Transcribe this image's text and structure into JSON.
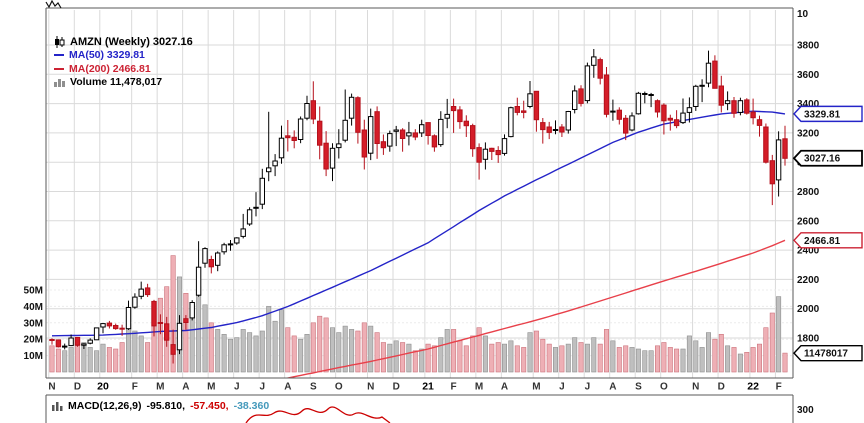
{
  "chart_data": {
    "type": "candlestick",
    "symbol": "AMZN",
    "timeframe": "Weekly",
    "title": "AMZN (Weekly) 3027.16",
    "last_price": 3027.16,
    "legend": {
      "ma50_label": "MA(50) 3329.81",
      "ma200_label": "MA(200) 2466.81",
      "volume_label": "Volume 11,478,017"
    },
    "upper_axis_label": "10",
    "price_ticks": [
      3800,
      3600,
      3400,
      3200,
      3000,
      2800,
      2600,
      2400,
      2200,
      2000,
      1800
    ],
    "volume_ticks": [
      50,
      40,
      30,
      20,
      10
    ],
    "x_ticks": [
      {
        "i": 0,
        "l": "N"
      },
      {
        "i": 4,
        "l": "D"
      },
      {
        "i": 8,
        "l": "20",
        "y": 1
      },
      {
        "i": 13,
        "l": "F"
      },
      {
        "i": 17,
        "l": "M"
      },
      {
        "i": 21,
        "l": "A"
      },
      {
        "i": 25,
        "l": "M"
      },
      {
        "i": 29,
        "l": "J"
      },
      {
        "i": 33,
        "l": "J"
      },
      {
        "i": 37,
        "l": "A"
      },
      {
        "i": 41,
        "l": "S"
      },
      {
        "i": 45,
        "l": "O"
      },
      {
        "i": 50,
        "l": "N"
      },
      {
        "i": 54,
        "l": "D"
      },
      {
        "i": 59,
        "l": "21",
        "y": 1
      },
      {
        "i": 63,
        "l": "F"
      },
      {
        "i": 67,
        "l": "M"
      },
      {
        "i": 71,
        "l": "A"
      },
      {
        "i": 76,
        "l": "M"
      },
      {
        "i": 80,
        "l": "J"
      },
      {
        "i": 84,
        "l": "J"
      },
      {
        "i": 88,
        "l": "A"
      },
      {
        "i": 92,
        "l": "S"
      },
      {
        "i": 96,
        "l": "O"
      },
      {
        "i": 101,
        "l": "N"
      },
      {
        "i": 105,
        "l": "D"
      },
      {
        "i": 110,
        "l": "22",
        "y": 1
      },
      {
        "i": 114,
        "l": "F"
      }
    ],
    "callouts": {
      "ma50": "3329.81",
      "ma50_value": 3329.81,
      "last": "3027.16",
      "last_value": 3027.16,
      "ma200": "2466.81",
      "ma200_value": 2466.81,
      "volume": "11478017",
      "volume_value": 11.5
    },
    "macd": {
      "label": "MACD(12,26,9)",
      "values": [
        -95.81,
        -57.45,
        -38.36
      ],
      "display": [
        "-95.810,",
        "-57.450,",
        "-38.360"
      ],
      "axis_label": "300"
    },
    "colors": {
      "up_fill": "#ffffff",
      "up_stroke": "#000000",
      "down_fill": "#d41d28",
      "down_stroke": "#b5101b",
      "ma50": "#2424c8",
      "ma200": "#e8404a",
      "ma200_text": "#cc2233",
      "vol_up": "#bfbfbf",
      "vol_up_stroke": "#8f8f8f",
      "vol_down": "#eeafb5",
      "vol_down_stroke": "#cc737c",
      "grid": "#dadada",
      "border": "#5a5a5a",
      "macd_line": "#000000",
      "macd_signal": "#cc0000",
      "macd_hist": "#4499bb"
    },
    "candles": [
      [
        1790,
        1797,
        1755,
        1785
      ],
      [
        1787,
        1789,
        1735,
        1740
      ],
      [
        1738,
        1762,
        1722,
        1745
      ],
      [
        1748,
        1824,
        1745,
        1800
      ],
      [
        1804,
        1806,
        1740,
        1751
      ],
      [
        1751,
        1764,
        1725,
        1760
      ],
      [
        1765,
        1798,
        1757,
        1786
      ],
      [
        1788,
        1870,
        1787,
        1869
      ],
      [
        1875,
        1902,
        1832,
        1898
      ],
      [
        1902,
        1917,
        1865,
        1883
      ],
      [
        1885,
        1898,
        1856,
        1864
      ],
      [
        1867,
        1891,
        1815,
        1861
      ],
      [
        1863,
        2055,
        1855,
        2008
      ],
      [
        2010,
        2105,
        2000,
        2079
      ],
      [
        2085,
        2185,
        2065,
        2134
      ],
      [
        2142,
        2170,
        2080,
        2096
      ],
      [
        2050,
        2060,
        1811,
        1883
      ],
      [
        1906,
        1962,
        1826,
        1901
      ],
      [
        1897,
        1944,
        1740,
        1785
      ],
      [
        1755,
        1857,
        1626,
        1689
      ],
      [
        1719,
        1956,
        1690,
        1900
      ],
      [
        1932,
        1956,
        1856,
        1906
      ],
      [
        1937,
        2058,
        1920,
        2042
      ],
      [
        2092,
        2461,
        2082,
        2283
      ],
      [
        2310,
        2420,
        2280,
        2410
      ],
      [
        2336,
        2362,
        2241,
        2286
      ],
      [
        2296,
        2391,
        2256,
        2380
      ],
      [
        2388,
        2450,
        2370,
        2436
      ],
      [
        2440,
        2469,
        2396,
        2442
      ],
      [
        2448,
        2488,
        2437,
        2483
      ],
      [
        2494,
        2647,
        2480,
        2545
      ],
      [
        2578,
        2692,
        2565,
        2675
      ],
      [
        2690,
        2796,
        2630,
        2692
      ],
      [
        2713,
        2955,
        2680,
        2890
      ],
      [
        2935,
        3344,
        2870,
        2961
      ],
      [
        2975,
        3055,
        2905,
        3008
      ],
      [
        3030,
        3250,
        2990,
        3164
      ],
      [
        3180,
        3288,
        3073,
        3167
      ],
      [
        3170,
        3217,
        3095,
        3148
      ],
      [
        3155,
        3312,
        3130,
        3295
      ],
      [
        3301,
        3453,
        3287,
        3401
      ],
      [
        3420,
        3552,
        3260,
        3295
      ],
      [
        3280,
        3380,
        3020,
        3116
      ],
      [
        3130,
        3212,
        2905,
        2954
      ],
      [
        2960,
        3130,
        2871,
        3095
      ],
      [
        3100,
        3225,
        3025,
        3125
      ],
      [
        3150,
        3496,
        3135,
        3286
      ],
      [
        3300,
        3468,
        3250,
        3443
      ],
      [
        3440,
        3450,
        3127,
        3204
      ],
      [
        3220,
        3290,
        2950,
        3036
      ],
      [
        3061,
        3366,
        3014,
        3311
      ],
      [
        3345,
        3381,
        3023,
        3128
      ],
      [
        3140,
        3189,
        3050,
        3099
      ],
      [
        3110,
        3216,
        3072,
        3195
      ],
      [
        3211,
        3248,
        3110,
        3220
      ],
      [
        3220,
        3232,
        3072,
        3162
      ],
      [
        3180,
        3275,
        3115,
        3201
      ],
      [
        3200,
        3225,
        3150,
        3172
      ],
      [
        3200,
        3290,
        3172,
        3256
      ],
      [
        3270,
        3272,
        3120,
        3182
      ],
      [
        3180,
        3190,
        3072,
        3104
      ],
      [
        3120,
        3348,
        3105,
        3292
      ],
      [
        3300,
        3432,
        3232,
        3326
      ],
      [
        3380,
        3434,
        3200,
        3352
      ],
      [
        3357,
        3382,
        3228,
        3277
      ],
      [
        3280,
        3320,
        3172,
        3249
      ],
      [
        3250,
        3263,
        3037,
        3092
      ],
      [
        3100,
        3128,
        2881,
        3000
      ],
      [
        3020,
        3135,
        2950,
        3089
      ],
      [
        3095,
        3098,
        3015,
        3074
      ],
      [
        3080,
        3109,
        2995,
        3052
      ],
      [
        3060,
        3190,
        3045,
        3161
      ],
      [
        3175,
        3379,
        3170,
        3372
      ],
      [
        3380,
        3440,
        3320,
        3340
      ],
      [
        3350,
        3420,
        3300,
        3340
      ],
      [
        3380,
        3554,
        3368,
        3467
      ],
      [
        3484,
        3486,
        3208,
        3290
      ],
      [
        3270,
        3302,
        3127,
        3222
      ],
      [
        3240,
        3275,
        3158,
        3203
      ],
      [
        3220,
        3285,
        3191,
        3223
      ],
      [
        3240,
        3260,
        3172,
        3206
      ],
      [
        3220,
        3350,
        3195,
        3346
      ],
      [
        3360,
        3524,
        3333,
        3487
      ],
      [
        3500,
        3525,
        3380,
        3401
      ],
      [
        3420,
        3680,
        3402,
        3657
      ],
      [
        3662,
        3773,
        3576,
        3719
      ],
      [
        3700,
        3714,
        3531,
        3573
      ],
      [
        3595,
        3650,
        3306,
        3327
      ],
      [
        3345,
        3427,
        3283,
        3349
      ],
      [
        3355,
        3375,
        3257,
        3293
      ],
      [
        3300,
        3322,
        3151,
        3199
      ],
      [
        3220,
        3340,
        3210,
        3316
      ],
      [
        3330,
        3480,
        3325,
        3470
      ],
      [
        3465,
        3482,
        3402,
        3469
      ],
      [
        3460,
        3473,
        3376,
        3462
      ],
      [
        3420,
        3429,
        3305,
        3343
      ],
      [
        3390,
        3402,
        3189,
        3283
      ],
      [
        3300,
        3324,
        3216,
        3288
      ],
      [
        3290,
        3355,
        3232,
        3250
      ],
      [
        3270,
        3435,
        3261,
        3335
      ],
      [
        3340,
        3442,
        3271,
        3372
      ],
      [
        3380,
        3528,
        3350,
        3518
      ],
      [
        3520,
        3566,
        3410,
        3525
      ],
      [
        3540,
        3762,
        3511,
        3676
      ],
      [
        3690,
        3730,
        3504,
        3504
      ],
      [
        3520,
        3590,
        3340,
        3389
      ],
      [
        3400,
        3483,
        3355,
        3420
      ],
      [
        3420,
        3445,
        3303,
        3334
      ],
      [
        3340,
        3440,
        3320,
        3420
      ],
      [
        3425,
        3437,
        3325,
        3334
      ],
      [
        3342,
        3434,
        3258,
        3304
      ],
      [
        3290,
        3318,
        3175,
        3251
      ],
      [
        3240,
        3264,
        2991,
        3000
      ],
      [
        3010,
        3050,
        2707,
        2852
      ],
      [
        2879,
        3211,
        2766,
        3152
      ],
      [
        3160,
        3249,
        2977,
        3027.16
      ]
    ],
    "volumes": [
      16,
      14,
      13,
      15,
      16,
      18,
      15,
      13,
      17,
      15,
      14,
      18,
      29,
      25,
      22,
      18,
      34,
      45,
      52,
      71,
      58,
      48,
      39,
      52,
      41,
      30,
      26,
      23,
      20,
      21,
      26,
      24,
      22,
      25,
      40,
      31,
      38,
      27,
      22,
      20,
      23,
      30,
      34,
      33,
      27,
      24,
      28,
      26,
      25,
      30,
      28,
      24,
      18,
      17,
      19,
      18,
      17,
      13,
      14,
      17,
      16,
      21,
      26,
      26,
      19,
      16,
      22,
      27,
      22,
      17,
      18,
      17,
      19,
      16,
      15,
      24,
      25,
      20,
      17,
      15,
      16,
      17,
      21,
      18,
      17,
      21,
      17,
      26,
      19,
      15,
      16,
      15,
      14,
      13,
      13,
      16,
      18,
      15,
      14,
      14,
      22,
      19,
      15,
      24,
      20,
      23,
      16,
      15,
      11,
      12,
      15,
      17,
      27,
      36,
      46,
      11.5
    ],
    "ma50_points": [
      [
        0,
        1815
      ],
      [
        8,
        1820
      ],
      [
        13,
        1832
      ],
      [
        17,
        1845
      ],
      [
        21,
        1851
      ],
      [
        25,
        1872
      ],
      [
        29,
        1905
      ],
      [
        33,
        1952
      ],
      [
        37,
        2015
      ],
      [
        41,
        2090
      ],
      [
        45,
        2165
      ],
      [
        50,
        2260
      ],
      [
        54,
        2345
      ],
      [
        59,
        2450
      ],
      [
        63,
        2560
      ],
      [
        67,
        2670
      ],
      [
        71,
        2770
      ],
      [
        76,
        2880
      ],
      [
        80,
        2965
      ],
      [
        84,
        3050
      ],
      [
        88,
        3135
      ],
      [
        92,
        3205
      ],
      [
        96,
        3260
      ],
      [
        101,
        3300
      ],
      [
        105,
        3330
      ],
      [
        110,
        3348
      ],
      [
        113,
        3342
      ],
      [
        115,
        3329.81
      ]
    ],
    "ma200_points": [
      [
        0,
        1290
      ],
      [
        8,
        1330
      ],
      [
        13,
        1355
      ],
      [
        17,
        1380
      ],
      [
        21,
        1405
      ],
      [
        25,
        1432
      ],
      [
        29,
        1460
      ],
      [
        33,
        1492
      ],
      [
        37,
        1527
      ],
      [
        41,
        1562
      ],
      [
        45,
        1598
      ],
      [
        50,
        1640
      ],
      [
        54,
        1678
      ],
      [
        59,
        1725
      ],
      [
        63,
        1772
      ],
      [
        67,
        1818
      ],
      [
        71,
        1865
      ],
      [
        76,
        1922
      ],
      [
        80,
        1972
      ],
      [
        84,
        2025
      ],
      [
        88,
        2080
      ],
      [
        92,
        2135
      ],
      [
        96,
        2190
      ],
      [
        101,
        2255
      ],
      [
        105,
        2310
      ],
      [
        110,
        2380
      ],
      [
        113,
        2430
      ],
      [
        115,
        2466.81
      ]
    ]
  }
}
